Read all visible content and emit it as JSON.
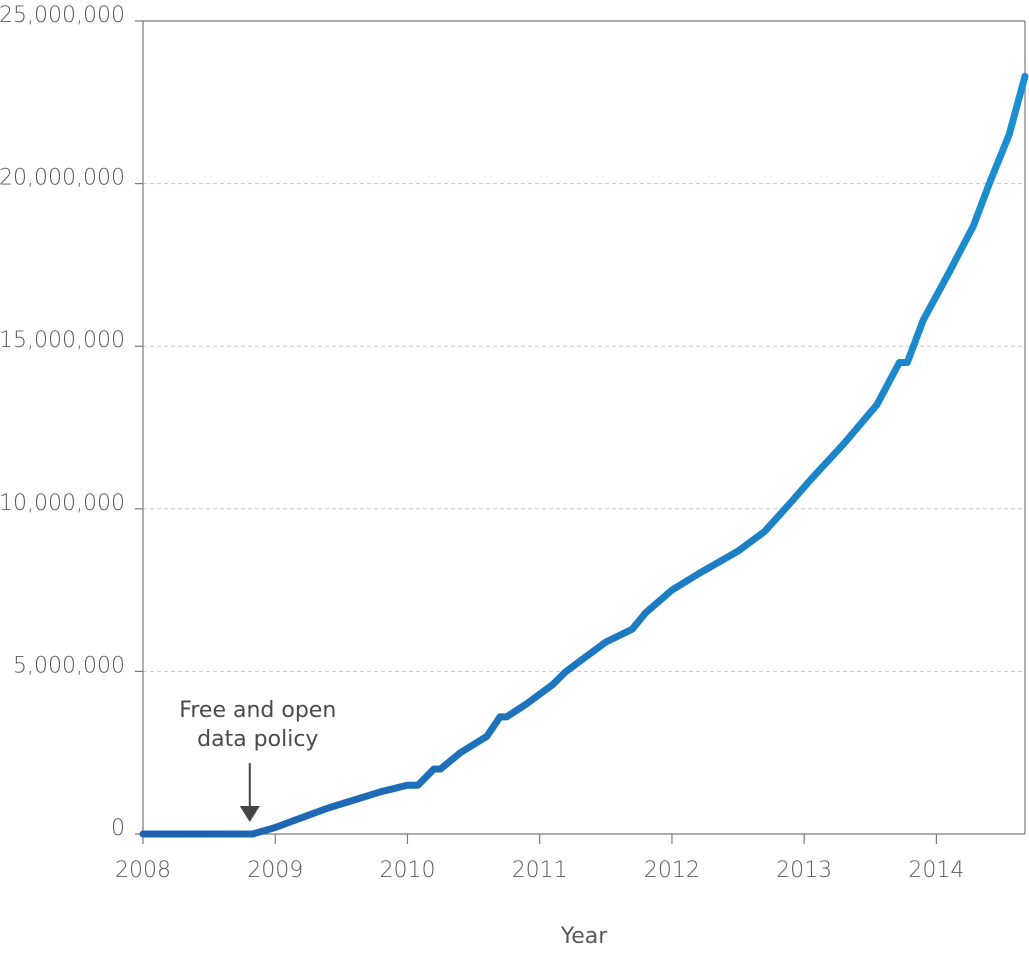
{
  "chart_data": {
    "type": "line",
    "xlabel": "Year",
    "ylabel": "",
    "xlim": [
      2008,
      2014.67
    ],
    "ylim": [
      0,
      25000000
    ],
    "x_ticks": [
      2008,
      2009,
      2010,
      2011,
      2012,
      2013,
      2014
    ],
    "x_tick_labels": [
      "2008",
      "2009",
      "2010",
      "2011",
      "2012",
      "2013",
      "2014"
    ],
    "y_ticks": [
      0,
      5000000,
      10000000,
      15000000,
      20000000,
      25000000
    ],
    "y_tick_labels": [
      "0",
      "5,000,000",
      "10,000,000",
      "15,000,000",
      "20,000,000",
      "25,000,000"
    ],
    "grid": "horizontal dashed",
    "series": [
      {
        "color_start": "#1f5fae",
        "color_end": "#1a8fd0",
        "x": [
          2008.0,
          2008.83,
          2009.0,
          2009.2,
          2009.4,
          2009.6,
          2009.8,
          2010.0,
          2010.08,
          2010.2,
          2010.25,
          2010.4,
          2010.6,
          2010.7,
          2010.75,
          2010.9,
          2011.1,
          2011.2,
          2011.3,
          2011.5,
          2011.7,
          2011.8,
          2012.0,
          2012.2,
          2012.5,
          2012.7,
          2012.9,
          2013.05,
          2013.3,
          2013.55,
          2013.72,
          2013.78,
          2013.9,
          2014.1,
          2014.28,
          2014.4,
          2014.55,
          2014.67
        ],
        "y": [
          0,
          0,
          200000,
          500000,
          800000,
          1050000,
          1300000,
          1500000,
          1500000,
          2000000,
          2000000,
          2500000,
          3000000,
          3600000,
          3600000,
          4000000,
          4600000,
          5000000,
          5300000,
          5900000,
          6300000,
          6800000,
          7500000,
          8000000,
          8700000,
          9300000,
          10200000,
          10900000,
          12000000,
          13200000,
          14500000,
          14500000,
          15800000,
          17300000,
          18700000,
          20000000,
          21500000,
          23300000
        ]
      }
    ],
    "annotations": [
      {
        "text_lines": [
          "Free and open",
          "data policy"
        ],
        "x": 2008.8,
        "y": 0,
        "arrow": "down"
      }
    ]
  }
}
